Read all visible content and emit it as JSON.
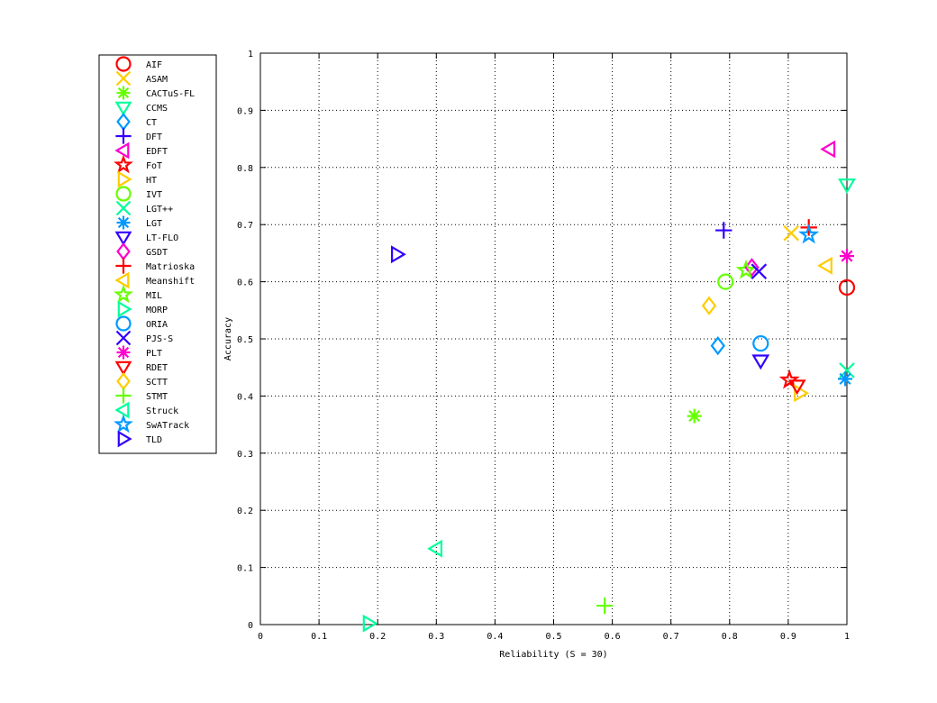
{
  "chart_data": {
    "type": "scatter",
    "title": "",
    "xlabel": "Reliability (S = 30)",
    "ylabel": "Accuracy",
    "xlim": [
      0,
      1
    ],
    "ylim": [
      0,
      1
    ],
    "xticks": [
      "0",
      "0.1",
      "0.2",
      "0.3",
      "0.4",
      "0.5",
      "0.6",
      "0.7",
      "0.8",
      "0.9",
      "1"
    ],
    "yticks": [
      "0",
      "0.1",
      "0.2",
      "0.3",
      "0.4",
      "0.5",
      "0.6",
      "0.7",
      "0.8",
      "0.9",
      "1"
    ],
    "grid": true,
    "legend_position": "outside-left",
    "series": [
      {
        "name": "AIF",
        "marker": "circle",
        "color": "#ff0000",
        "x": 1.0,
        "y": 0.59
      },
      {
        "name": "ASAM",
        "marker": "x",
        "color": "#ffcc00",
        "x": 0.905,
        "y": 0.685
      },
      {
        "name": "CACTuS-FL",
        "marker": "asterisk",
        "color": "#66ff00",
        "x": 0.74,
        "y": 0.365
      },
      {
        "name": "CCMS",
        "marker": "triangle-down",
        "color": "#00ff99",
        "x": 1.0,
        "y": 0.77
      },
      {
        "name": "CT",
        "marker": "diamond",
        "color": "#0099ff",
        "x": 0.78,
        "y": 0.488
      },
      {
        "name": "DFT",
        "marker": "plus",
        "color": "#3300ff",
        "x": 0.79,
        "y": 0.69
      },
      {
        "name": "EDFT",
        "marker": "triangle-left",
        "color": "#ff00cc",
        "x": 0.97,
        "y": 0.832
      },
      {
        "name": "FoT",
        "marker": "star",
        "color": "#ff0000",
        "x": 0.902,
        "y": 0.428
      },
      {
        "name": "HT",
        "marker": "triangle-right",
        "color": "#ffcc00",
        "x": 0.92,
        "y": 0.405
      },
      {
        "name": "IVT",
        "marker": "circle",
        "color": "#66ff00",
        "x": 0.793,
        "y": 0.6
      },
      {
        "name": "LGT++",
        "marker": "x",
        "color": "#00ff99",
        "x": 1.0,
        "y": 0.445
      },
      {
        "name": "LGT",
        "marker": "asterisk",
        "color": "#0099ff",
        "x": 0.997,
        "y": 0.43
      },
      {
        "name": "LT-FLO",
        "marker": "triangle-down",
        "color": "#3300ff",
        "x": 0.853,
        "y": 0.462
      },
      {
        "name": "GSDT",
        "marker": "diamond",
        "color": "#ff00cc",
        "x": 0.838,
        "y": 0.625
      },
      {
        "name": "Matrioska",
        "marker": "plus",
        "color": "#ff0000",
        "x": 0.935,
        "y": 0.695
      },
      {
        "name": "Meanshift",
        "marker": "triangle-left",
        "color": "#ffcc00",
        "x": 0.965,
        "y": 0.628
      },
      {
        "name": "MIL",
        "marker": "star",
        "color": "#66ff00",
        "x": 0.828,
        "y": 0.62
      },
      {
        "name": "MORP",
        "marker": "triangle-right",
        "color": "#00ff99",
        "x": 0.185,
        "y": 0.002
      },
      {
        "name": "ORIA",
        "marker": "circle",
        "color": "#0099ff",
        "x": 0.853,
        "y": 0.492
      },
      {
        "name": "PJS-S",
        "marker": "x",
        "color": "#3300ff",
        "x": 0.85,
        "y": 0.618
      },
      {
        "name": "PLT",
        "marker": "asterisk",
        "color": "#ff00cc",
        "x": 1.0,
        "y": 0.645
      },
      {
        "name": "RDET",
        "marker": "triangle-down",
        "color": "#ff0000",
        "x": 0.915,
        "y": 0.418
      },
      {
        "name": "SCTT",
        "marker": "diamond",
        "color": "#ffcc00",
        "x": 0.765,
        "y": 0.558
      },
      {
        "name": "STMT",
        "marker": "plus",
        "color": "#66ff00",
        "x": 0.587,
        "y": 0.033
      },
      {
        "name": "Struck",
        "marker": "triangle-left",
        "color": "#00ff99",
        "x": 0.3,
        "y": 0.133
      },
      {
        "name": "SwATrack",
        "marker": "star",
        "color": "#0099ff",
        "x": 0.935,
        "y": 0.682
      },
      {
        "name": "TLD",
        "marker": "triangle-right",
        "color": "#3300ff",
        "x": 0.233,
        "y": 0.648
      }
    ]
  }
}
